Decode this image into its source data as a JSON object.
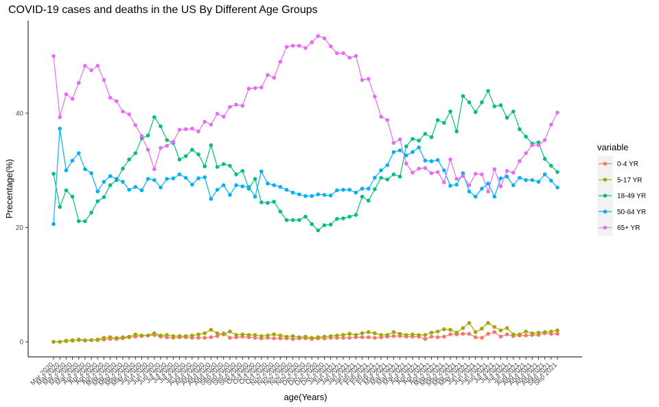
{
  "chart_data": {
    "type": "line",
    "title": "COVID-19 cases and deaths in the US By Different Age Groups",
    "x_label": "age(Years)",
    "y_label": "Precentage(%)",
    "legend_title": "variable",
    "categories": [
      "Mar 2020",
      "Mar 2020",
      "Mar 2020",
      "Mar 2020",
      "Mar 2020",
      "Apr 2020",
      "Apr 2020",
      "Apr 2020",
      "Apr 2020",
      "May 2020",
      "May 2020",
      "May 2020",
      "May 2020",
      "May 2020",
      "Jun 2020",
      "Jun 2020",
      "Jun 2020",
      "Jun 2020",
      "Jul 2020",
      "Jul 2020",
      "Jul 2020",
      "Jul 2020",
      "Aug 2020",
      "Aug 2020",
      "Aug 2020",
      "Aug 2020",
      "Aug 2020",
      "Sep 2020",
      "Sep 2020",
      "Sep 2020",
      "Sep 2020",
      "Oct 2020",
      "Oct 2020",
      "Oct 2020",
      "Oct 2020",
      "Nov 2020",
      "Nov 2020",
      "Nov 2020",
      "Nov 2020",
      "Nov 2020",
      "Dec 2020",
      "Dec 2020",
      "Dec 2020",
      "Dec 2020",
      "Jan 2021",
      "Jan 2021",
      "Jan 2021",
      "Jan 2021",
      "Jan 2021",
      "Feb 2021",
      "Feb 2021",
      "Feb 2021",
      "Feb 2021",
      "Mar 2021",
      "Mar 2021",
      "Mar 2021",
      "Mar 2021",
      "Apr 2021",
      "Apr 2021",
      "Apr 2021",
      "Apr 2021",
      "May 2021",
      "May 2021",
      "May 2021",
      "May 2021",
      "May 2021",
      "Jun 2021",
      "Jun 2021",
      "Jun 2021",
      "Jun 2021",
      "Jul 2021",
      "Jul 2021",
      "Jul 2021",
      "Jul 2021",
      "Aug 2021",
      "Aug 2021",
      "Aug 2021",
      "Aug 2021",
      "Aug 2021",
      "Sep 2021",
      "Sep 2021"
    ],
    "series": [
      {
        "name": "0-4 YR",
        "color": "#F8766D",
        "values": [
          0,
          0,
          0.1,
          0.3,
          0.3,
          0.2,
          0.3,
          0.3,
          0.4,
          0.5,
          0.5,
          0.6,
          0.8,
          0.9,
          1.0,
          1.1,
          1.2,
          0.9,
          0.8,
          0.7,
          0.8,
          0.8,
          0.7,
          0.7,
          0.7,
          0.8,
          1.0,
          1.5,
          0.7,
          0.8,
          0.9,
          0.8,
          0.7,
          0.6,
          0.7,
          0.6,
          0.6,
          0.6,
          0.5,
          0.6,
          0.6,
          0.5,
          0.6,
          0.6,
          0.7,
          0.7,
          0.7,
          0.7,
          0.8,
          0.8,
          0.8,
          0.7,
          0.8,
          0.9,
          1.0,
          1.0,
          0.9,
          0.9,
          0.9,
          0.5,
          0.9,
          0.8,
          0.9,
          1.3,
          1.3,
          1.4,
          1.4,
          0.8,
          0.7,
          1.4,
          1.7,
          0.9,
          1.3,
          1.0,
          1.1,
          1.1,
          1.2,
          1.2,
          1.5,
          1.4,
          1.4
        ]
      },
      {
        "name": "5-17 YR",
        "color": "#A3A500",
        "values": [
          0,
          0,
          0.2,
          0.2,
          0.4,
          0.3,
          0.3,
          0.4,
          0.7,
          0.8,
          0.7,
          0.8,
          0.9,
          1.3,
          1.1,
          1.1,
          1.5,
          1.1,
          1.2,
          1.0,
          1.0,
          1.0,
          1.1,
          1.3,
          1.5,
          2.1,
          1.5,
          1.3,
          1.8,
          1.2,
          1.3,
          1.2,
          1.2,
          1.0,
          1.1,
          1.3,
          1.1,
          0.9,
          1.0,
          0.8,
          0.9,
          0.7,
          0.8,
          0.9,
          1.0,
          1.1,
          1.2,
          1.4,
          1.2,
          1.5,
          1.7,
          1.5,
          1.2,
          1.2,
          1.7,
          1.4,
          1.2,
          1.3,
          1.2,
          1.2,
          1.6,
          1.8,
          2.2,
          2.1,
          1.6,
          2.4,
          3.3,
          1.7,
          2.3,
          3.3,
          2.6,
          2.0,
          2.4,
          1.3,
          1.3,
          1.8,
          1.5,
          1.6,
          1.7,
          1.8,
          2.0
        ]
      },
      {
        "name": "18-49 YR",
        "color": "#00BF7D",
        "values": [
          29.4,
          23.6,
          26.5,
          25.4,
          21.1,
          21.1,
          22.6,
          24.6,
          25.3,
          27.4,
          28.3,
          30.3,
          31.9,
          33.0,
          35.6,
          36.1,
          39.3,
          37.7,
          35.3,
          34.8,
          31.9,
          32.5,
          33.6,
          32.8,
          30.7,
          34.4,
          30.6,
          31.1,
          30.8,
          29.3,
          29.9,
          26.8,
          28.5,
          24.4,
          24.3,
          24.5,
          22.8,
          21.3,
          21.3,
          21.3,
          21.9,
          20.6,
          19.5,
          20.4,
          20.5,
          21.5,
          21.6,
          21.9,
          22.2,
          25.4,
          24.7,
          26.7,
          28.7,
          28.4,
          29.3,
          28.9,
          34.2,
          35.5,
          35.2,
          36.4,
          35.8,
          38.8,
          38.3,
          40.3,
          36.8,
          43.0,
          41.9,
          40.2,
          41.9,
          43.9,
          41.2,
          41.4,
          39.2,
          40.3,
          37.2,
          35.9,
          34.7,
          34.9,
          32.0,
          30.8,
          29.7
        ]
      },
      {
        "name": "50-64 YR",
        "color": "#00B0F6",
        "values": [
          20.6,
          37.3,
          30.0,
          31.7,
          33.0,
          30.2,
          29.5,
          26.3,
          28.0,
          29.0,
          28.5,
          28.0,
          26.6,
          27.1,
          26.5,
          28.5,
          28.3,
          27.0,
          28.5,
          28.6,
          29.3,
          28.7,
          27.5,
          28.6,
          28.8,
          25.0,
          26.6,
          27.4,
          25.7,
          27.4,
          27.2,
          27.1,
          25.4,
          29.8,
          27.7,
          27.4,
          27.1,
          26.6,
          26.1,
          25.8,
          25.5,
          25.5,
          25.8,
          25.7,
          25.6,
          26.5,
          26.6,
          26.6,
          26.1,
          26.8,
          26.8,
          28.7,
          30.0,
          30.9,
          33.2,
          33.5,
          32.6,
          33.2,
          34.0,
          31.7,
          31.6,
          31.8,
          30.0,
          27.3,
          27.5,
          29.5,
          26.3,
          25.4,
          26.8,
          27.7,
          25.4,
          28.6,
          28.9,
          27.4,
          28.7,
          28.3,
          28.3,
          28.0,
          29.3,
          28.2,
          27.0
        ]
      },
      {
        "name": "65+ YR",
        "color": "#E76BF3",
        "values": [
          50.0,
          39.3,
          43.3,
          42.5,
          45.3,
          48.3,
          47.5,
          48.3,
          45.8,
          42.7,
          42.1,
          40.3,
          39.8,
          37.9,
          36.0,
          33.6,
          30.2,
          33.9,
          34.3,
          35.0,
          37.1,
          37.2,
          37.3,
          36.8,
          38.5,
          38.0,
          39.9,
          39.4,
          41.1,
          41.5,
          41.3,
          44.3,
          44.4,
          44.5,
          46.7,
          46.2,
          49.0,
          51.6,
          51.8,
          51.8,
          51.4,
          52.4,
          53.5,
          53.1,
          51.7,
          50.5,
          50.5,
          49.7,
          50.0,
          45.8,
          46.0,
          42.9,
          39.4,
          38.8,
          34.8,
          35.4,
          31.2,
          29.6,
          30.3,
          30.4,
          29.5,
          29.7,
          27.9,
          31.9,
          28.5,
          29.0,
          27.4,
          29.4,
          29.3,
          26.3,
          30.2,
          27.2,
          29.9,
          29.6,
          31.6,
          33.0,
          34.4,
          34.4,
          35.3,
          38.0,
          40.1
        ]
      }
    ],
    "ylim": [
      -2.64,
      56.2
    ],
    "yticks": [
      0,
      20,
      40
    ],
    "grid": false
  }
}
